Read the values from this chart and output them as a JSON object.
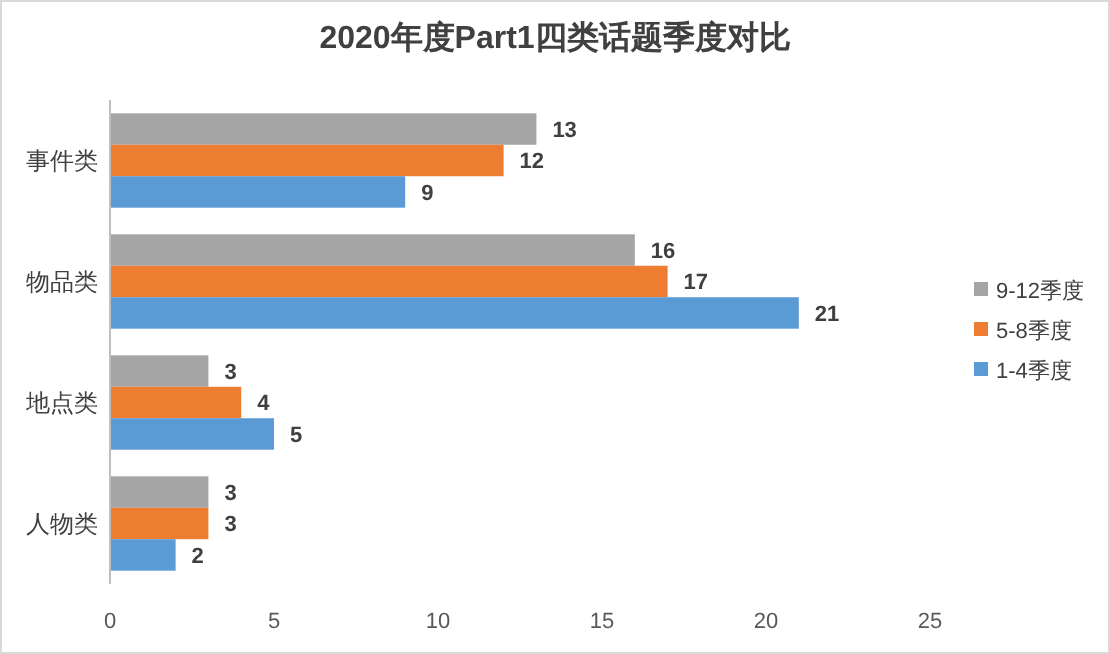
{
  "chart_data": {
    "type": "bar",
    "orientation": "horizontal",
    "title": "2020年度Part1四类话题季度对比",
    "categories": [
      "事件类",
      "物品类",
      "地点类",
      "人物类"
    ],
    "series": [
      {
        "name": "9-12季度",
        "color": "#a5a5a5",
        "values": [
          13,
          16,
          3,
          3
        ]
      },
      {
        "name": "5-8季度",
        "color": "#ed7d31",
        "values": [
          12,
          17,
          4,
          3
        ]
      },
      {
        "name": "1-4季度",
        "color": "#5b9bd5",
        "values": [
          9,
          21,
          5,
          2
        ]
      }
    ],
    "xlim": [
      0,
      25
    ],
    "xticks": [
      0,
      5,
      10,
      15,
      20,
      25
    ],
    "grid": false,
    "legend": "right",
    "data_labels": true
  }
}
